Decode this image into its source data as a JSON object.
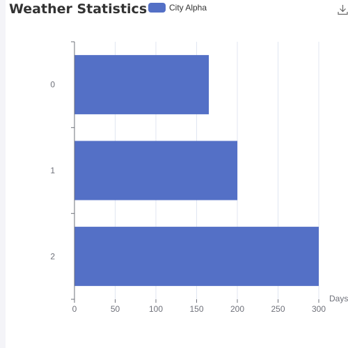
{
  "title": "Weather Statistics",
  "legend": {
    "label": "City Alpha"
  },
  "icons": {
    "download": "download-icon"
  },
  "colors": {
    "bar": "#5470c6",
    "axis": "#6e7079",
    "grid": "#e0e6f1"
  },
  "chart_data": {
    "type": "bar",
    "orientation": "horizontal",
    "title": "Weather Statistics",
    "categories": [
      "0",
      "1",
      "2"
    ],
    "series": [
      {
        "name": "City Alpha",
        "values": [
          165,
          200,
          300
        ]
      }
    ],
    "xlabel": "Days",
    "ylabel": "",
    "xlim": [
      0,
      300
    ],
    "xticks": [
      0,
      50,
      100,
      150,
      200,
      250,
      300
    ],
    "grid": true,
    "legend_position": "top"
  }
}
